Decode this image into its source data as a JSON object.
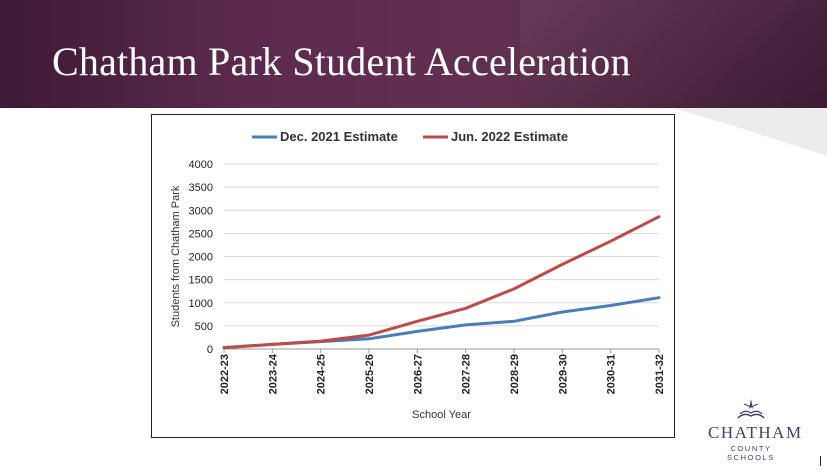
{
  "slide": {
    "title": "Chatham Park Student Acceleration"
  },
  "logo": {
    "name": "CHATHAM",
    "subtitle": "COUNTY SCHOOLS",
    "icon": "book-compass-icon"
  },
  "colors": {
    "banner": "#5c2a4e",
    "series_dec": "#4a7ebb",
    "series_jun": "#be4b48",
    "logo": "#4a3a6a"
  },
  "chart_data": {
    "type": "line",
    "x": [
      "2022-23",
      "2023-24",
      "2024-25",
      "2025-26",
      "2026-27",
      "2027-28",
      "2028-29",
      "2029-30",
      "2030-31",
      "2031-32"
    ],
    "series": [
      {
        "name": "Dec. 2021 Estimate",
        "color": "#4a7ebb",
        "values": [
          30,
          100,
          160,
          220,
          380,
          520,
          600,
          800,
          940,
          1110
        ]
      },
      {
        "name": "Jun. 2022 Estimate",
        "color": "#be4b48",
        "values": [
          30,
          100,
          170,
          300,
          600,
          880,
          1300,
          1830,
          2330,
          2860
        ]
      }
    ],
    "xlabel": "School Year",
    "ylabel": "Students from Chatham Park",
    "ylim": [
      0,
      4000
    ],
    "yticks": [
      0,
      500,
      1000,
      1500,
      2000,
      2500,
      3000,
      3500,
      4000
    ],
    "grid": true,
    "legend": "top"
  }
}
